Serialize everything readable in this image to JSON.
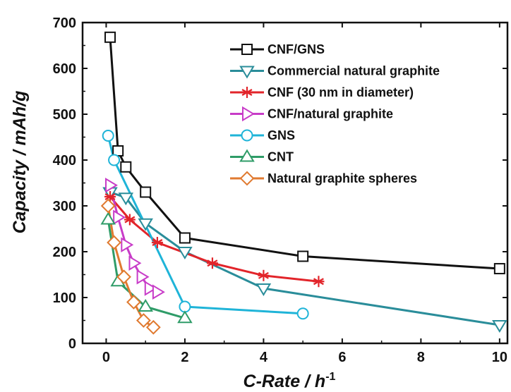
{
  "chart_data": {
    "type": "line",
    "xlabel": "C-Rate / h",
    "xlabel_superscript": "-1",
    "ylabel": "Capacity / mAh/g",
    "xlim": [
      -0.6,
      10.2
    ],
    "ylim": [
      0,
      700
    ],
    "xticks": [
      0,
      2,
      4,
      6,
      8,
      10
    ],
    "yticks": [
      0,
      100,
      200,
      300,
      400,
      500,
      600,
      700
    ],
    "grid": false,
    "legend_position": "top-right",
    "series": [
      {
        "name": "CNF/GNS",
        "color": "#111111",
        "marker": "square",
        "x": [
          0.1,
          0.3,
          0.5,
          1.0,
          2.0,
          5.0,
          10.0
        ],
        "y": [
          668,
          420,
          385,
          330,
          230,
          190,
          163
        ]
      },
      {
        "name": "Commercial natural graphite",
        "color": "#2a8d9a",
        "marker": "triangle-down",
        "x": [
          0.1,
          0.5,
          1.0,
          2.0,
          4.0,
          10.0
        ],
        "y": [
          330,
          318,
          262,
          200,
          120,
          40
        ]
      },
      {
        "name": "CNF (30 nm in diameter)",
        "color": "#e2242a",
        "marker": "star",
        "x": [
          0.1,
          0.6,
          1.3,
          2.7,
          4.0,
          5.4
        ],
        "y": [
          320,
          270,
          220,
          175,
          148,
          135
        ]
      },
      {
        "name": "CNF/natural graphite",
        "color": "#c83cc8",
        "marker": "triangle-right",
        "x": [
          0.1,
          0.3,
          0.5,
          0.7,
          0.9,
          1.1,
          1.3
        ],
        "y": [
          345,
          275,
          215,
          175,
          145,
          120,
          112
        ]
      },
      {
        "name": "GNS",
        "color": "#1fb4d8",
        "marker": "circle",
        "x": [
          0.05,
          0.2,
          2.0,
          5.0
        ],
        "y": [
          453,
          400,
          80,
          65
        ]
      },
      {
        "name": "CNT",
        "color": "#2f9c68",
        "marker": "triangle-up",
        "x": [
          0.05,
          0.3,
          1.0,
          2.0
        ],
        "y": [
          270,
          135,
          80,
          55
        ]
      },
      {
        "name": "Natural graphite spheres",
        "color": "#e07a30",
        "marker": "diamond",
        "x": [
          0.05,
          0.2,
          0.45,
          0.7,
          0.95,
          1.2
        ],
        "y": [
          300,
          220,
          145,
          90,
          50,
          35
        ]
      }
    ]
  }
}
